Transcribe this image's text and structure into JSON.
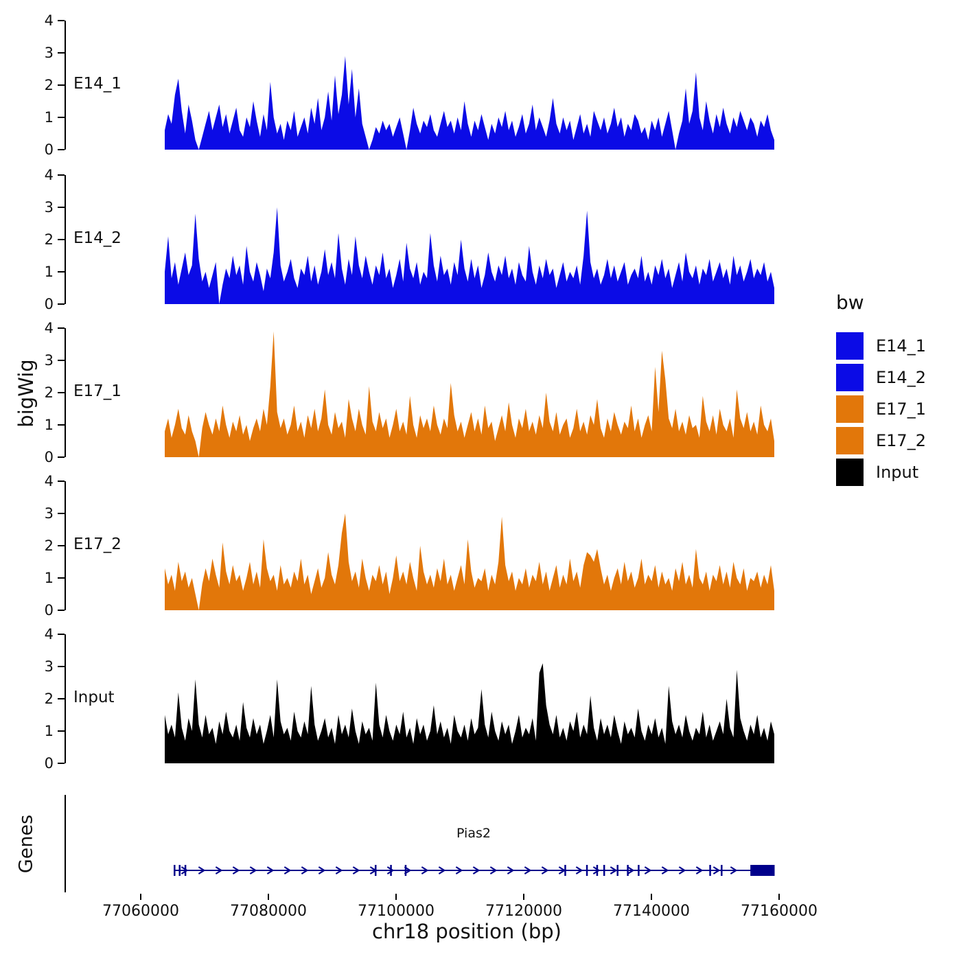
{
  "plot": {
    "y_axis_title": "bigWig",
    "genes_title": "Genes",
    "x_axis_title": "chr18 position (bp)",
    "y_tick_labels": [
      "4",
      "3",
      "2",
      "1",
      "0"
    ],
    "x_tick_labels": [
      "77060000",
      "77080000",
      "77100000",
      "77120000",
      "77140000",
      "77160000"
    ],
    "gene_label": "Pias2",
    "legend": {
      "title": "bw",
      "items": [
        {
          "label": "E14_1",
          "color": "#0b0be6"
        },
        {
          "label": "E14_2",
          "color": "#0b0be6"
        },
        {
          "label": "E17_1",
          "color": "#e2770a"
        },
        {
          "label": "E17_2",
          "color": "#e2770a"
        },
        {
          "label": "Input",
          "color": "#000000"
        }
      ]
    }
  },
  "chart_data": {
    "type": "area",
    "title": "",
    "xlabel": "chr18 position (bp)",
    "ylabel": "bigWig",
    "x_range": [
      77064000,
      77159000
    ],
    "ylim": [
      0,
      4
    ],
    "x_ticks": [
      77060000,
      77080000,
      77100000,
      77120000,
      77140000,
      77160000
    ],
    "grid": false,
    "legend_position": "right",
    "tracks": [
      {
        "name": "E14_1",
        "color": "#0b0be6",
        "values": [
          0.6,
          1.1,
          0.8,
          1.7,
          2.2,
          1.2,
          0.5,
          1.4,
          0.9,
          0.3,
          0.0,
          0.4,
          0.8,
          1.2,
          0.6,
          1.0,
          1.4,
          0.7,
          1.1,
          0.5,
          0.9,
          1.3,
          0.6,
          0.4,
          1.0,
          0.7,
          1.5,
          0.9,
          0.4,
          1.1,
          0.6,
          2.1,
          1.0,
          0.5,
          0.8,
          0.3,
          0.9,
          0.6,
          1.2,
          0.4,
          0.7,
          1.0,
          0.5,
          1.3,
          0.8,
          1.6,
          0.6,
          1.0,
          1.8,
          0.9,
          2.3,
          1.1,
          1.7,
          2.9,
          1.4,
          2.5,
          1.0,
          1.9,
          0.8,
          0.4,
          0.0,
          0.3,
          0.7,
          0.5,
          0.9,
          0.6,
          0.8,
          0.4,
          0.7,
          1.0,
          0.5,
          0.0,
          0.6,
          1.3,
          0.8,
          0.5,
          0.9,
          0.7,
          1.1,
          0.6,
          0.4,
          0.8,
          1.2,
          0.7,
          0.9,
          0.5,
          1.0,
          0.6,
          1.5,
          0.8,
          0.4,
          0.9,
          0.6,
          1.1,
          0.7,
          0.3,
          0.8,
          0.5,
          1.0,
          0.7,
          1.2,
          0.6,
          0.9,
          0.4,
          0.7,
          1.1,
          0.5,
          0.8,
          1.4,
          0.6,
          1.0,
          0.7,
          0.4,
          0.9,
          1.6,
          0.8,
          0.5,
          1.0,
          0.6,
          0.9,
          0.3,
          0.7,
          1.1,
          0.5,
          0.8,
          0.4,
          1.2,
          0.9,
          0.6,
          1.0,
          0.5,
          0.8,
          1.3,
          0.7,
          1.0,
          0.4,
          0.8,
          0.6,
          1.1,
          0.9,
          0.5,
          0.7,
          0.3,
          0.9,
          0.6,
          1.0,
          0.4,
          0.8,
          1.2,
          0.6,
          0.0,
          0.5,
          0.9,
          1.9,
          0.8,
          1.2,
          2.4,
          1.0,
          0.6,
          1.5,
          0.9,
          0.5,
          1.1,
          0.7,
          1.3,
          0.8,
          0.5,
          1.0,
          0.7,
          1.2,
          0.9,
          0.6,
          1.0,
          0.8,
          0.4,
          0.9,
          0.7,
          1.1,
          0.6,
          0.3
        ]
      },
      {
        "name": "E14_2",
        "color": "#0b0be6",
        "values": [
          1.0,
          2.1,
          0.8,
          1.3,
          0.6,
          1.1,
          1.6,
          0.9,
          1.2,
          2.8,
          1.4,
          0.7,
          1.0,
          0.5,
          0.9,
          1.3,
          0.0,
          0.6,
          1.1,
          0.8,
          1.5,
          0.9,
          1.2,
          0.6,
          1.8,
          1.0,
          0.7,
          1.3,
          0.9,
          0.4,
          1.1,
          0.8,
          1.6,
          3.0,
          1.2,
          0.7,
          1.0,
          1.4,
          0.8,
          0.5,
          1.1,
          0.9,
          1.5,
          0.7,
          1.2,
          0.6,
          1.0,
          1.7,
          0.9,
          1.3,
          0.8,
          2.2,
          1.1,
          0.6,
          1.4,
          0.9,
          2.1,
          1.2,
          0.8,
          1.5,
          1.0,
          0.6,
          1.2,
          0.9,
          1.6,
          0.8,
          1.1,
          0.5,
          0.9,
          1.4,
          0.7,
          1.9,
          1.1,
          0.8,
          1.3,
          0.6,
          1.0,
          0.8,
          2.2,
          1.2,
          0.7,
          1.5,
          0.9,
          1.1,
          0.6,
          1.3,
          0.9,
          2.0,
          1.1,
          0.7,
          1.4,
          0.8,
          1.2,
          0.5,
          0.9,
          1.6,
          1.0,
          0.7,
          1.2,
          0.9,
          1.5,
          0.8,
          1.1,
          0.6,
          1.3,
          0.9,
          0.7,
          1.8,
          1.0,
          0.6,
          1.2,
          0.8,
          1.4,
          0.9,
          1.1,
          0.5,
          0.9,
          1.3,
          0.7,
          1.0,
          0.8,
          1.2,
          0.6,
          1.5,
          2.9,
          1.3,
          0.8,
          1.1,
          0.6,
          0.9,
          1.4,
          0.8,
          1.2,
          0.7,
          1.0,
          1.3,
          0.6,
          0.9,
          1.1,
          0.8,
          1.5,
          0.7,
          1.0,
          0.6,
          1.2,
          0.9,
          1.4,
          0.8,
          1.1,
          0.5,
          0.9,
          1.3,
          0.7,
          1.6,
          1.0,
          0.8,
          1.2,
          0.6,
          1.1,
          0.9,
          1.4,
          0.7,
          1.0,
          1.3,
          0.8,
          1.1,
          0.6,
          1.5,
          0.9,
          1.2,
          0.7,
          1.0,
          1.4,
          0.8,
          1.1,
          0.9,
          1.3,
          0.7,
          1.0,
          0.5
        ]
      },
      {
        "name": "E17_1",
        "color": "#e2770a",
        "values": [
          0.8,
          1.2,
          0.6,
          1.0,
          1.5,
          0.9,
          0.7,
          1.3,
          0.8,
          0.5,
          0.0,
          0.9,
          1.4,
          1.0,
          0.7,
          1.2,
          0.8,
          1.6,
          1.0,
          0.6,
          1.1,
          0.8,
          1.3,
          0.7,
          1.0,
          0.5,
          0.9,
          1.2,
          0.8,
          1.5,
          1.0,
          2.2,
          3.9,
          1.4,
          0.9,
          1.2,
          0.7,
          1.0,
          1.6,
          0.8,
          1.1,
          0.6,
          1.3,
          0.9,
          1.5,
          0.8,
          1.2,
          2.1,
          1.0,
          0.7,
          1.4,
          0.9,
          1.1,
          0.6,
          1.8,
          1.2,
          0.8,
          1.5,
          1.0,
          0.7,
          2.2,
          1.1,
          0.8,
          1.4,
          0.9,
          1.2,
          0.6,
          1.0,
          1.5,
          0.8,
          1.1,
          0.7,
          1.9,
          1.0,
          0.6,
          1.3,
          0.9,
          1.2,
          0.8,
          1.6,
          1.0,
          0.7,
          1.2,
          0.9,
          2.3,
          1.3,
          0.8,
          1.1,
          0.6,
          1.0,
          1.4,
          0.8,
          1.2,
          0.7,
          1.6,
          0.9,
          1.1,
          0.5,
          0.9,
          1.3,
          0.8,
          1.7,
          1.0,
          0.6,
          1.2,
          0.9,
          1.5,
          0.8,
          1.1,
          0.7,
          1.3,
          0.9,
          2.0,
          1.1,
          0.8,
          1.4,
          0.7,
          1.0,
          1.2,
          0.6,
          0.9,
          1.5,
          0.8,
          1.1,
          0.7,
          1.3,
          1.0,
          1.8,
          0.9,
          0.6,
          1.2,
          0.8,
          1.4,
          1.0,
          0.7,
          1.1,
          0.9,
          1.6,
          0.8,
          1.2,
          0.6,
          1.0,
          1.3,
          0.8,
          2.8,
          1.4,
          3.3,
          2.4,
          1.2,
          0.9,
          1.5,
          0.8,
          1.1,
          0.7,
          1.3,
          0.9,
          1.0,
          0.6,
          1.9,
          1.1,
          0.8,
          1.3,
          0.7,
          1.5,
          1.0,
          0.8,
          1.2,
          0.6,
          2.1,
          1.2,
          0.9,
          1.4,
          0.8,
          1.1,
          0.7,
          1.6,
          1.0,
          0.8,
          1.2,
          0.5
        ]
      },
      {
        "name": "E17_2",
        "color": "#e2770a",
        "values": [
          1.3,
          0.8,
          1.1,
          0.6,
          1.5,
          0.9,
          1.2,
          0.7,
          1.0,
          0.5,
          0.0,
          0.8,
          1.3,
          0.9,
          1.6,
          1.1,
          0.7,
          2.1,
          1.2,
          0.8,
          1.4,
          0.9,
          1.1,
          0.6,
          1.0,
          1.5,
          0.8,
          1.2,
          0.7,
          2.2,
          1.3,
          0.9,
          1.1,
          0.6,
          1.4,
          0.8,
          1.0,
          0.7,
          1.2,
          0.9,
          1.6,
          0.8,
          1.1,
          0.5,
          0.9,
          1.3,
          0.7,
          1.0,
          1.8,
          1.1,
          0.8,
          1.4,
          2.4,
          3.0,
          1.5,
          0.9,
          1.2,
          0.7,
          1.6,
          1.0,
          0.6,
          1.1,
          0.9,
          1.4,
          0.8,
          1.2,
          0.5,
          1.0,
          1.7,
          0.9,
          1.2,
          0.8,
          1.5,
          1.0,
          0.6,
          2.0,
          1.2,
          0.8,
          1.1,
          0.7,
          1.3,
          0.9,
          1.6,
          0.8,
          1.1,
          0.6,
          1.0,
          1.4,
          0.8,
          2.2,
          1.2,
          0.7,
          1.0,
          0.9,
          1.3,
          0.6,
          1.1,
          0.8,
          1.5,
          2.9,
          1.4,
          0.9,
          1.2,
          0.6,
          1.0,
          0.8,
          1.3,
          0.7,
          1.1,
          0.9,
          1.5,
          0.8,
          1.2,
          0.6,
          1.0,
          1.4,
          0.7,
          1.1,
          0.8,
          1.6,
          0.9,
          1.2,
          0.7,
          1.4,
          1.8,
          1.7,
          1.5,
          1.9,
          1.3,
          0.8,
          1.1,
          0.6,
          1.0,
          1.3,
          0.8,
          1.5,
          0.9,
          1.2,
          0.7,
          1.0,
          1.6,
          0.8,
          1.1,
          0.9,
          1.4,
          0.7,
          1.2,
          0.8,
          1.0,
          0.6,
          1.3,
          0.9,
          1.5,
          0.8,
          1.1,
          0.7,
          1.9,
          1.0,
          0.8,
          1.2,
          0.6,
          1.1,
          0.9,
          1.4,
          0.8,
          1.2,
          0.7,
          1.5,
          1.0,
          0.8,
          1.3,
          0.6,
          1.0,
          0.9,
          1.2,
          0.7,
          1.1,
          0.8,
          1.4,
          0.6
        ]
      },
      {
        "name": "Input",
        "color": "#000000",
        "values": [
          1.5,
          0.9,
          1.2,
          0.8,
          2.2,
          1.1,
          0.7,
          1.4,
          1.0,
          2.6,
          1.2,
          0.8,
          1.5,
          0.9,
          1.1,
          0.6,
          1.3,
          0.9,
          1.6,
          1.0,
          0.8,
          1.2,
          0.7,
          1.9,
          1.1,
          0.8,
          1.4,
          0.9,
          1.2,
          0.6,
          1.0,
          1.5,
          0.8,
          2.6,
          1.3,
          0.9,
          1.1,
          0.7,
          1.6,
          1.0,
          0.8,
          1.3,
          0.9,
          2.4,
          1.2,
          0.7,
          1.0,
          1.4,
          0.8,
          1.1,
          0.6,
          1.5,
          0.9,
          1.2,
          0.8,
          1.7,
          1.0,
          0.6,
          1.3,
          0.9,
          1.1,
          0.7,
          2.5,
          1.2,
          0.8,
          1.5,
          1.0,
          0.7,
          1.2,
          0.9,
          1.6,
          0.8,
          1.1,
          0.6,
          1.4,
          0.9,
          1.2,
          0.7,
          1.0,
          1.8,
          0.9,
          1.3,
          0.8,
          1.1,
          0.6,
          1.5,
          1.0,
          0.8,
          1.2,
          0.7,
          1.4,
          0.9,
          1.1,
          2.3,
          1.2,
          0.8,
          1.6,
          1.0,
          0.7,
          1.3,
          0.9,
          1.2,
          0.6,
          1.0,
          1.5,
          0.8,
          1.1,
          0.9,
          1.4,
          0.7,
          2.8,
          3.1,
          1.8,
          1.2,
          0.9,
          1.5,
          0.8,
          1.1,
          0.7,
          1.3,
          1.0,
          1.6,
          0.8,
          1.2,
          0.9,
          2.1,
          1.1,
          0.7,
          1.4,
          0.9,
          1.2,
          0.8,
          1.5,
          1.0,
          0.6,
          1.3,
          0.9,
          1.1,
          0.8,
          1.7,
          1.0,
          0.7,
          1.2,
          0.9,
          1.4,
          0.8,
          1.1,
          0.6,
          2.4,
          1.3,
          0.9,
          1.2,
          0.8,
          1.5,
          1.0,
          0.7,
          1.1,
          0.9,
          1.6,
          0.8,
          1.2,
          0.7,
          1.0,
          1.3,
          0.9,
          2.0,
          1.1,
          0.8,
          2.9,
          1.4,
          1.0,
          0.7,
          1.2,
          0.9,
          1.5,
          0.8,
          1.1,
          0.7,
          1.3,
          0.9
        ]
      },
      {
        "name": "__gene_track_note__",
        "color": "",
        "values": []
      }
    ],
    "gene_track": {
      "gene": "Pias2",
      "strand": "+",
      "color": "#00008b",
      "start": 77065200,
      "end": 77159300,
      "exon_ticks": [
        77065300,
        77066100,
        77067000,
        77096800,
        77099200,
        77101500,
        77126500,
        77129900,
        77131500,
        77132600,
        77134700,
        77136300,
        77138000,
        77149200,
        77151000
      ],
      "terminal_exon": [
        77155500,
        77159300
      ]
    }
  }
}
